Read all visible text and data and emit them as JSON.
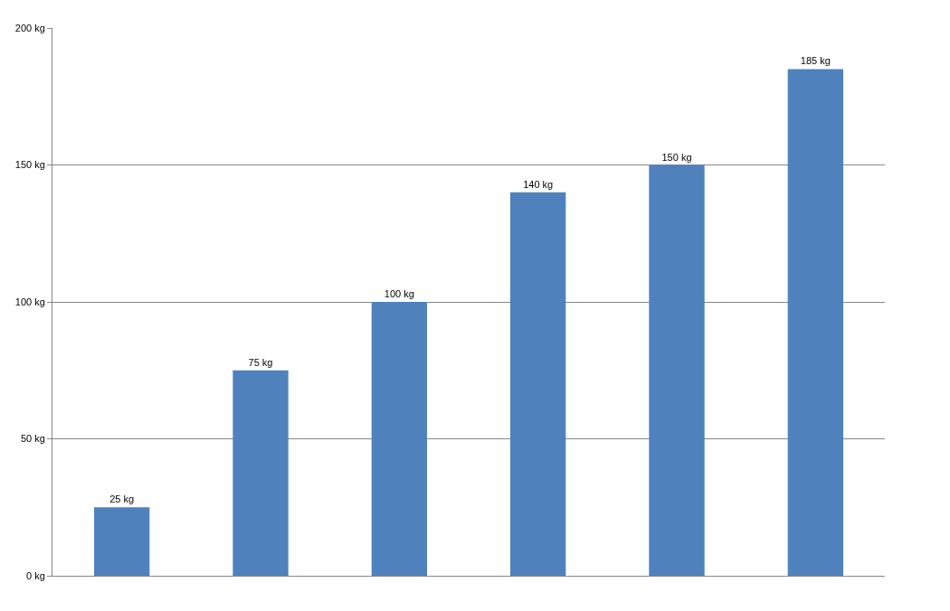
{
  "chart_data": {
    "type": "bar",
    "categories": [
      null,
      null,
      null,
      null,
      null,
      null
    ],
    "values": [
      25,
      75,
      100,
      140,
      150,
      185
    ],
    "color": "#4f81bd",
    "value_labels": [
      "25 kg",
      "75 kg",
      "100 kg",
      "140 kg",
      "150 kg",
      "185 kg"
    ],
    "ylim": [
      0,
      200
    ],
    "yticks": [
      {
        "value": 0,
        "label": "0 kg"
      },
      {
        "value": 50,
        "label": "50 kg"
      },
      {
        "value": 100,
        "label": "100 kg"
      },
      {
        "value": 150,
        "label": "150 kg"
      },
      {
        "value": 200,
        "label": "200 kg"
      }
    ],
    "grid": "y",
    "tick_labels": "y"
  }
}
